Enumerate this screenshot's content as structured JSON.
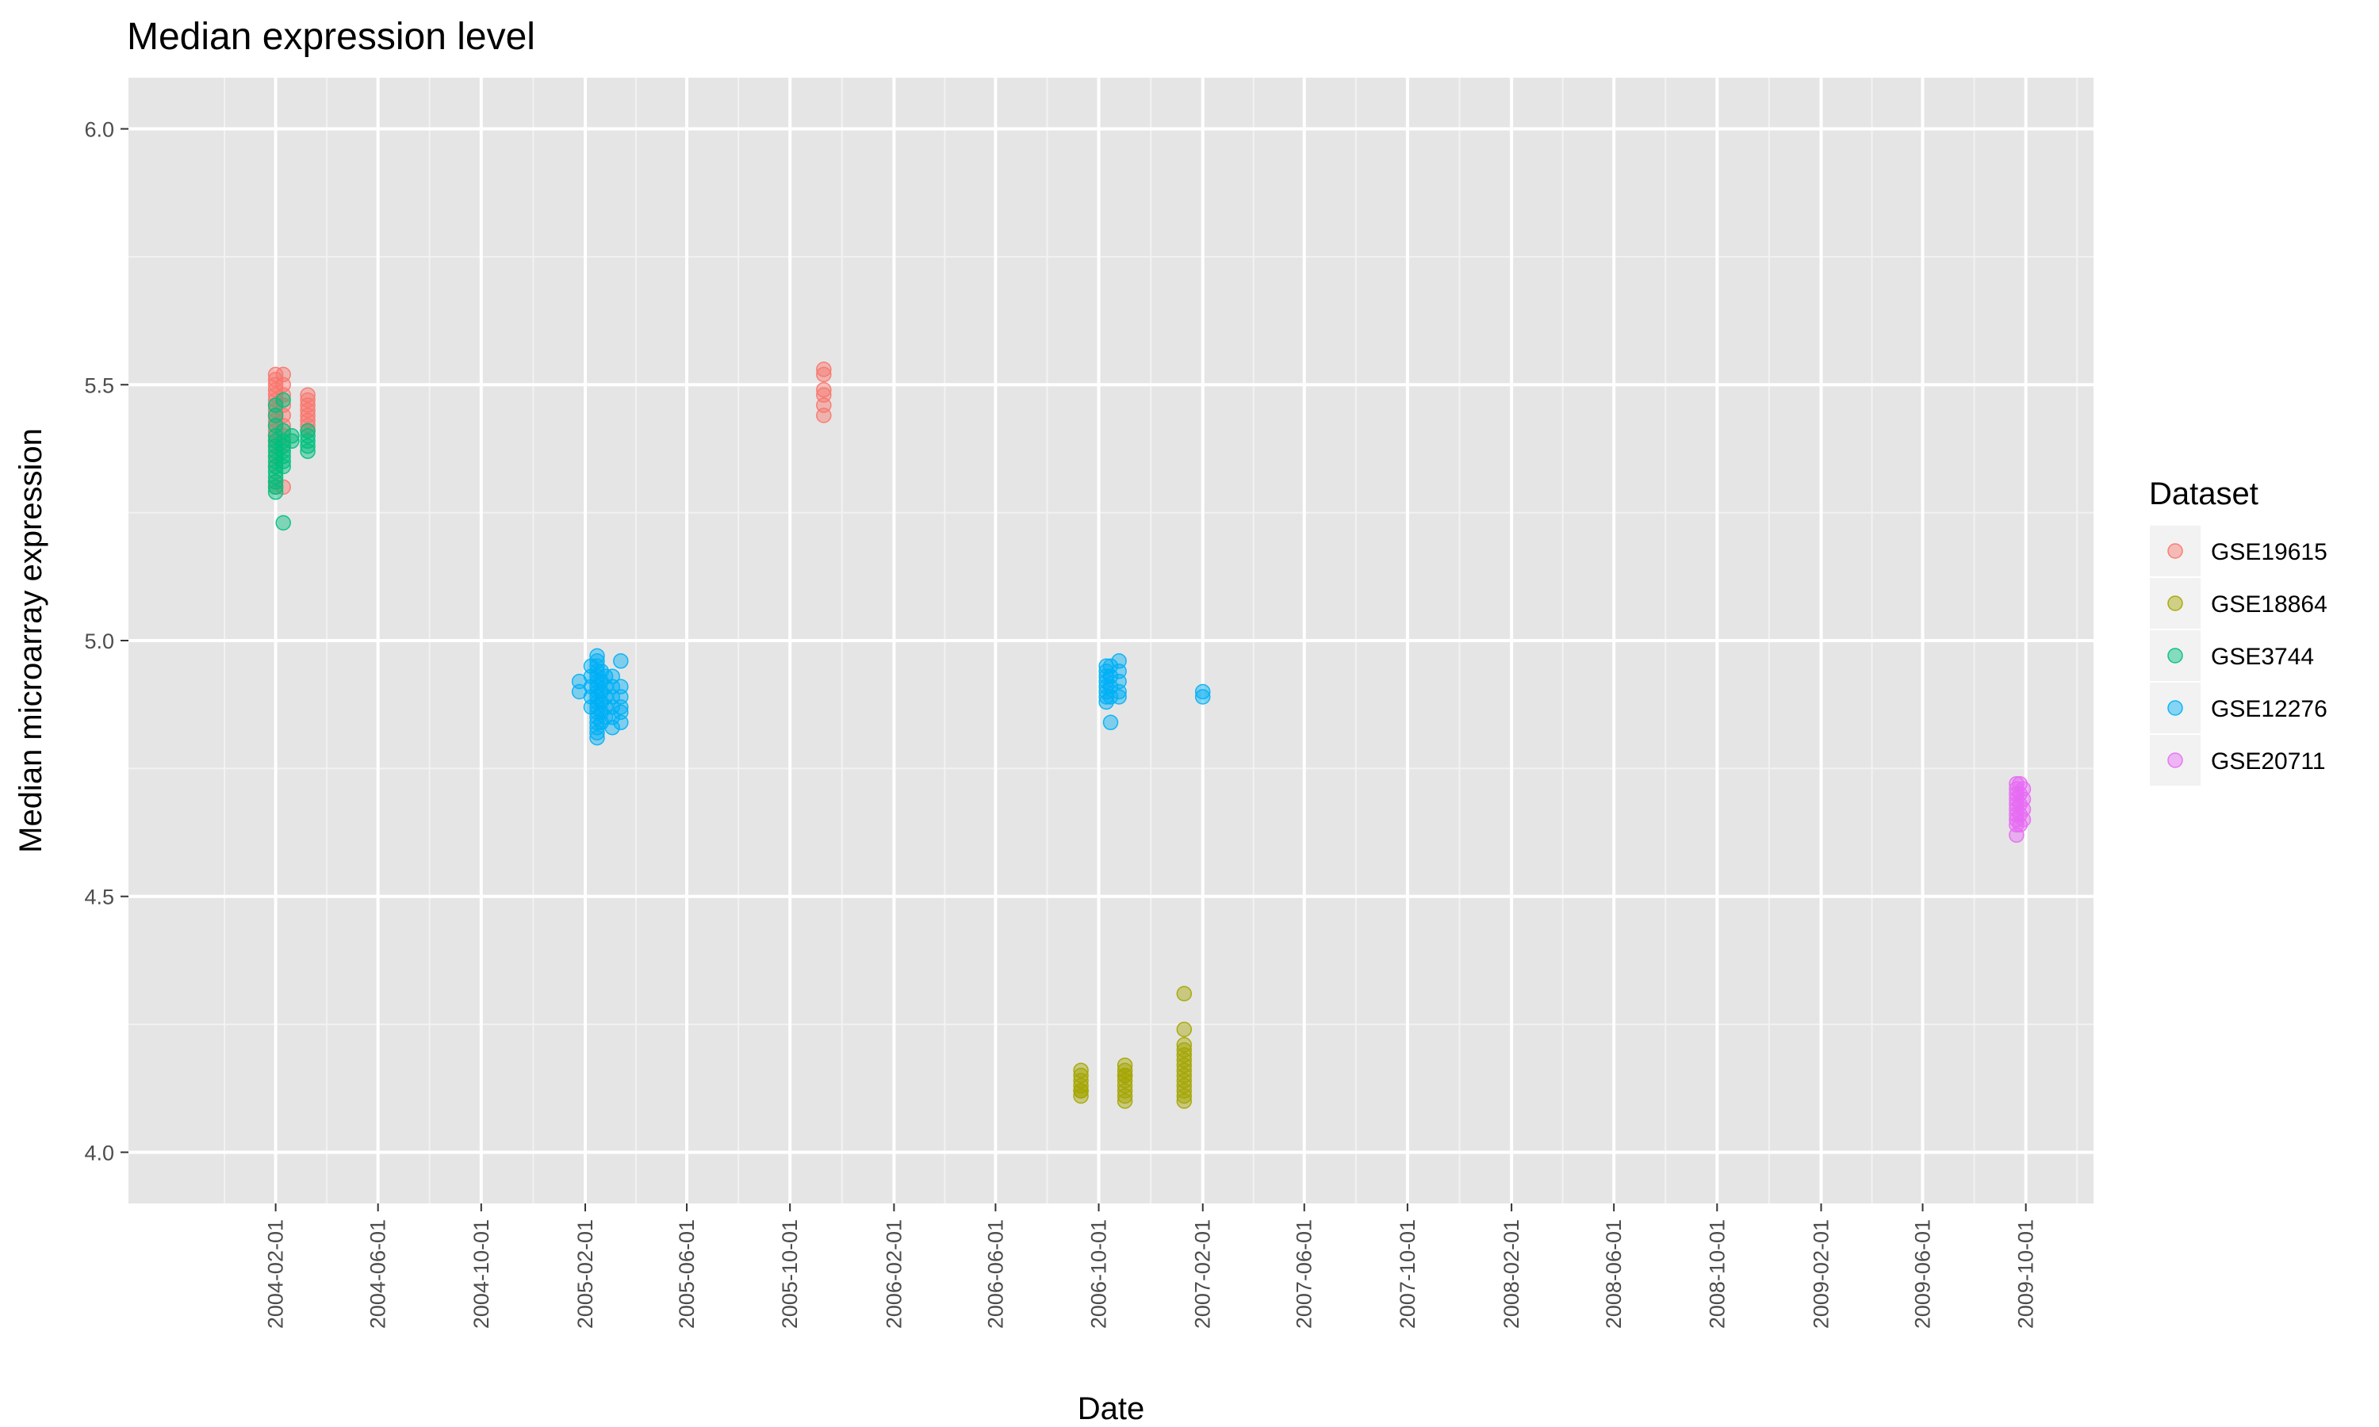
{
  "chart_data": {
    "type": "scatter",
    "title": "Median expression level",
    "xlabel": "Date",
    "ylabel": "Median microarray expression",
    "x_scale": "date",
    "xlim": [
      "2003-08-11",
      "2009-12-20"
    ],
    "ylim": [
      3.9,
      6.1
    ],
    "x_ticks": [
      "2004-02-01",
      "2004-06-01",
      "2004-10-01",
      "2005-02-01",
      "2005-06-01",
      "2005-10-01",
      "2006-02-01",
      "2006-06-01",
      "2006-10-01",
      "2007-02-01",
      "2007-06-01",
      "2007-10-01",
      "2008-02-01",
      "2008-06-01",
      "2008-10-01",
      "2009-02-01",
      "2009-06-01",
      "2009-10-01"
    ],
    "y_ticks": [
      4.0,
      4.5,
      5.0,
      5.5,
      6.0
    ],
    "y_tick_labels": [
      "4.0",
      "4.5",
      "5.0",
      "5.5",
      "6.0"
    ],
    "grid": true,
    "panel_background": "#e5e5e5",
    "legend": {
      "title": "Dataset",
      "placement": "right"
    },
    "series": [
      {
        "name": "GSE19615",
        "color": "#f8766d",
        "points": [
          [
            "2004-02-01",
            5.52
          ],
          [
            "2004-02-01",
            5.51
          ],
          [
            "2004-02-01",
            5.5
          ],
          [
            "2004-02-01",
            5.49
          ],
          [
            "2004-02-01",
            5.48
          ],
          [
            "2004-02-01",
            5.47
          ],
          [
            "2004-02-01",
            5.46
          ],
          [
            "2004-02-01",
            5.45
          ],
          [
            "2004-02-01",
            5.44
          ],
          [
            "2004-02-01",
            5.43
          ],
          [
            "2004-02-01",
            5.42
          ],
          [
            "2004-02-01",
            5.41
          ],
          [
            "2004-02-01",
            5.4
          ],
          [
            "2004-02-01",
            5.39
          ],
          [
            "2004-02-01",
            5.38
          ],
          [
            "2004-02-01",
            5.36
          ],
          [
            "2004-02-01",
            5.34
          ],
          [
            "2004-02-01",
            5.31
          ],
          [
            "2004-02-01",
            5.3
          ],
          [
            "2004-02-10",
            5.52
          ],
          [
            "2004-02-10",
            5.5
          ],
          [
            "2004-02-10",
            5.48
          ],
          [
            "2004-02-10",
            5.46
          ],
          [
            "2004-02-10",
            5.44
          ],
          [
            "2004-02-10",
            5.42
          ],
          [
            "2004-02-10",
            5.4
          ],
          [
            "2004-02-10",
            5.38
          ],
          [
            "2004-02-10",
            5.3
          ],
          [
            "2004-03-10",
            5.48
          ],
          [
            "2004-03-10",
            5.47
          ],
          [
            "2004-03-10",
            5.46
          ],
          [
            "2004-03-10",
            5.45
          ],
          [
            "2004-03-10",
            5.44
          ],
          [
            "2004-03-10",
            5.43
          ],
          [
            "2004-03-10",
            5.42
          ],
          [
            "2004-03-10",
            5.41
          ],
          [
            "2005-11-10",
            5.53
          ],
          [
            "2005-11-10",
            5.52
          ],
          [
            "2005-11-10",
            5.49
          ],
          [
            "2005-11-10",
            5.48
          ],
          [
            "2005-11-10",
            5.46
          ],
          [
            "2005-11-10",
            5.44
          ]
        ]
      },
      {
        "name": "GSE18864",
        "color": "#a3a500",
        "points": [
          [
            "2006-09-10",
            4.16
          ],
          [
            "2006-09-10",
            4.15
          ],
          [
            "2006-09-10",
            4.14
          ],
          [
            "2006-09-10",
            4.13
          ],
          [
            "2006-09-10",
            4.12
          ],
          [
            "2006-09-10",
            4.12
          ],
          [
            "2006-09-10",
            4.11
          ],
          [
            "2006-11-01",
            4.17
          ],
          [
            "2006-11-01",
            4.16
          ],
          [
            "2006-11-01",
            4.15
          ],
          [
            "2006-11-01",
            4.14
          ],
          [
            "2006-11-01",
            4.13
          ],
          [
            "2006-11-01",
            4.12
          ],
          [
            "2006-11-01",
            4.11
          ],
          [
            "2006-11-01",
            4.1
          ],
          [
            "2006-11-01",
            4.15
          ],
          [
            "2007-01-10",
            4.31
          ],
          [
            "2007-01-10",
            4.24
          ],
          [
            "2007-01-10",
            4.21
          ],
          [
            "2007-01-10",
            4.2
          ],
          [
            "2007-01-10",
            4.19
          ],
          [
            "2007-01-10",
            4.18
          ],
          [
            "2007-01-10",
            4.17
          ],
          [
            "2007-01-10",
            4.16
          ],
          [
            "2007-01-10",
            4.15
          ],
          [
            "2007-01-10",
            4.14
          ],
          [
            "2007-01-10",
            4.13
          ],
          [
            "2007-01-10",
            4.12
          ],
          [
            "2007-01-10",
            4.11
          ],
          [
            "2007-01-10",
            4.1
          ]
        ]
      },
      {
        "name": "GSE3744",
        "color": "#00bf7d",
        "points": [
          [
            "2004-02-01",
            5.46
          ],
          [
            "2004-02-01",
            5.44
          ],
          [
            "2004-02-01",
            5.42
          ],
          [
            "2004-02-01",
            5.4
          ],
          [
            "2004-02-01",
            5.39
          ],
          [
            "2004-02-01",
            5.38
          ],
          [
            "2004-02-01",
            5.37
          ],
          [
            "2004-02-01",
            5.36
          ],
          [
            "2004-02-01",
            5.35
          ],
          [
            "2004-02-01",
            5.34
          ],
          [
            "2004-02-01",
            5.33
          ],
          [
            "2004-02-01",
            5.32
          ],
          [
            "2004-02-01",
            5.31
          ],
          [
            "2004-02-01",
            5.3
          ],
          [
            "2004-02-01",
            5.29
          ],
          [
            "2004-02-10",
            5.47
          ],
          [
            "2004-02-10",
            5.41
          ],
          [
            "2004-02-10",
            5.39
          ],
          [
            "2004-02-10",
            5.38
          ],
          [
            "2004-02-10",
            5.37
          ],
          [
            "2004-02-10",
            5.36
          ],
          [
            "2004-02-10",
            5.35
          ],
          [
            "2004-02-10",
            5.34
          ],
          [
            "2004-02-10",
            5.23
          ],
          [
            "2004-02-20",
            5.4
          ],
          [
            "2004-02-20",
            5.39
          ],
          [
            "2004-03-10",
            5.41
          ],
          [
            "2004-03-10",
            5.4
          ],
          [
            "2004-03-10",
            5.39
          ],
          [
            "2004-03-10",
            5.38
          ],
          [
            "2004-03-10",
            5.37
          ]
        ]
      },
      {
        "name": "GSE12276",
        "color": "#00b0f6",
        "points": [
          [
            "2005-01-25",
            4.92
          ],
          [
            "2005-01-25",
            4.9
          ],
          [
            "2005-02-08",
            4.95
          ],
          [
            "2005-02-08",
            4.93
          ],
          [
            "2005-02-08",
            4.91
          ],
          [
            "2005-02-08",
            4.89
          ],
          [
            "2005-02-08",
            4.87
          ],
          [
            "2005-02-15",
            4.97
          ],
          [
            "2005-02-15",
            4.96
          ],
          [
            "2005-02-15",
            4.95
          ],
          [
            "2005-02-15",
            4.94
          ],
          [
            "2005-02-15",
            4.93
          ],
          [
            "2005-02-15",
            4.92
          ],
          [
            "2005-02-15",
            4.91
          ],
          [
            "2005-02-15",
            4.9
          ],
          [
            "2005-02-15",
            4.89
          ],
          [
            "2005-02-15",
            4.88
          ],
          [
            "2005-02-15",
            4.87
          ],
          [
            "2005-02-15",
            4.86
          ],
          [
            "2005-02-15",
            4.85
          ],
          [
            "2005-02-15",
            4.84
          ],
          [
            "2005-02-15",
            4.83
          ],
          [
            "2005-02-15",
            4.82
          ],
          [
            "2005-02-15",
            4.81
          ],
          [
            "2005-02-20",
            4.94
          ],
          [
            "2005-02-20",
            4.92
          ],
          [
            "2005-02-20",
            4.9
          ],
          [
            "2005-02-20",
            4.88
          ],
          [
            "2005-02-20",
            4.86
          ],
          [
            "2005-02-20",
            4.84
          ],
          [
            "2005-02-25",
            4.93
          ],
          [
            "2005-02-25",
            4.91
          ],
          [
            "2005-02-25",
            4.89
          ],
          [
            "2005-02-25",
            4.87
          ],
          [
            "2005-02-25",
            4.85
          ],
          [
            "2005-03-05",
            4.93
          ],
          [
            "2005-03-05",
            4.91
          ],
          [
            "2005-03-05",
            4.89
          ],
          [
            "2005-03-05",
            4.87
          ],
          [
            "2005-03-05",
            4.85
          ],
          [
            "2005-03-05",
            4.83
          ],
          [
            "2005-03-15",
            4.96
          ],
          [
            "2005-03-15",
            4.91
          ],
          [
            "2005-03-15",
            4.89
          ],
          [
            "2005-03-15",
            4.87
          ],
          [
            "2005-03-15",
            4.86
          ],
          [
            "2005-03-15",
            4.84
          ],
          [
            "2006-10-10",
            4.95
          ],
          [
            "2006-10-10",
            4.94
          ],
          [
            "2006-10-10",
            4.93
          ],
          [
            "2006-10-10",
            4.92
          ],
          [
            "2006-10-10",
            4.91
          ],
          [
            "2006-10-10",
            4.9
          ],
          [
            "2006-10-10",
            4.89
          ],
          [
            "2006-10-10",
            4.88
          ],
          [
            "2006-10-15",
            4.95
          ],
          [
            "2006-10-15",
            4.93
          ],
          [
            "2006-10-15",
            4.91
          ],
          [
            "2006-10-15",
            4.89
          ],
          [
            "2006-10-15",
            4.84
          ],
          [
            "2006-10-25",
            4.96
          ],
          [
            "2006-10-25",
            4.94
          ],
          [
            "2006-10-25",
            4.92
          ],
          [
            "2006-10-25",
            4.9
          ],
          [
            "2006-10-25",
            4.89
          ],
          [
            "2007-02-01",
            4.9
          ],
          [
            "2007-02-01",
            4.89
          ]
        ]
      },
      {
        "name": "GSE20711",
        "color": "#e76bf3",
        "points": [
          [
            "2009-09-20",
            4.72
          ],
          [
            "2009-09-20",
            4.71
          ],
          [
            "2009-09-20",
            4.7
          ],
          [
            "2009-09-20",
            4.69
          ],
          [
            "2009-09-20",
            4.68
          ],
          [
            "2009-09-20",
            4.67
          ],
          [
            "2009-09-20",
            4.66
          ],
          [
            "2009-09-20",
            4.65
          ],
          [
            "2009-09-20",
            4.64
          ],
          [
            "2009-09-20",
            4.62
          ],
          [
            "2009-09-24",
            4.72
          ],
          [
            "2009-09-24",
            4.7
          ],
          [
            "2009-09-24",
            4.68
          ],
          [
            "2009-09-24",
            4.66
          ],
          [
            "2009-09-24",
            4.64
          ],
          [
            "2009-09-28",
            4.71
          ],
          [
            "2009-09-28",
            4.69
          ],
          [
            "2009-09-28",
            4.67
          ],
          [
            "2009-09-28",
            4.65
          ]
        ]
      }
    ]
  }
}
